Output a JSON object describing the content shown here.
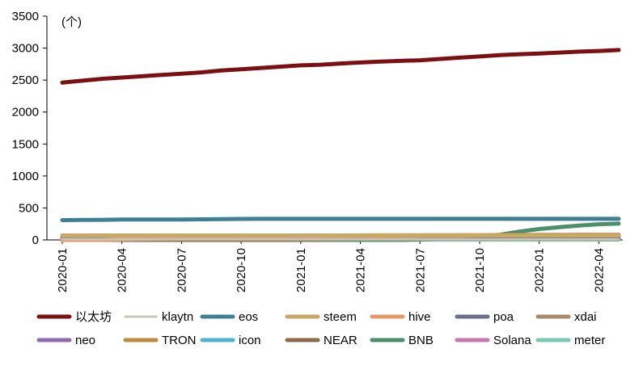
{
  "chart_data": {
    "type": "line",
    "unit_label": "(个)",
    "ylim": [
      0,
      3500
    ],
    "yticks": [
      "0",
      "500",
      "1000",
      "1500",
      "2000",
      "2500",
      "3000",
      "3500"
    ],
    "x": [
      "2020-01",
      "2020-02",
      "2020-03",
      "2020-04",
      "2020-05",
      "2020-06",
      "2020-07",
      "2020-08",
      "2020-09",
      "2020-10",
      "2020-11",
      "2020-12",
      "2021-01",
      "2021-02",
      "2021-03",
      "2021-04",
      "2021-05",
      "2021-06",
      "2021-07",
      "2021-08",
      "2021-09",
      "2021-10",
      "2021-11",
      "2021-12",
      "2022-01",
      "2022-02",
      "2022-03",
      "2022-04",
      "2022-05"
    ],
    "xticks": [
      "2020-01",
      "2020-04",
      "2020-07",
      "2020-10",
      "2021-01",
      "2021-04",
      "2021-07",
      "2021-10",
      "2022-01",
      "2022-04"
    ],
    "grid": false,
    "legend_position": "bottom",
    "series": [
      {
        "name": "以太坊",
        "color": "#7b0f12",
        "width": 5,
        "values": [
          2460,
          2490,
          2520,
          2540,
          2560,
          2580,
          2600,
          2620,
          2650,
          2670,
          2690,
          2710,
          2730,
          2740,
          2760,
          2775,
          2790,
          2800,
          2810,
          2830,
          2850,
          2870,
          2890,
          2905,
          2915,
          2930,
          2945,
          2955,
          2970
        ]
      },
      {
        "name": "klaytn",
        "color": "#c9c5b5",
        "width": 3,
        "values": [
          10,
          10,
          10,
          10,
          10,
          10,
          10,
          10,
          10,
          10,
          10,
          10,
          10,
          10,
          10,
          10,
          10,
          10,
          10,
          10,
          10,
          10,
          10,
          10,
          10,
          10,
          10,
          10,
          10
        ]
      },
      {
        "name": "eos",
        "color": "#3f7f96",
        "width": 5,
        "values": [
          310,
          312,
          315,
          318,
          320,
          320,
          320,
          322,
          325,
          328,
          330,
          330,
          330,
          330,
          330,
          330,
          330,
          330,
          330,
          330,
          330,
          330,
          330,
          330,
          330,
          330,
          330,
          330,
          330
        ]
      },
      {
        "name": "steem",
        "color": "#c8a864",
        "width": 5,
        "values": [
          70,
          70,
          70,
          70,
          70,
          70,
          70,
          70,
          70,
          70,
          70,
          70,
          70,
          70,
          70,
          70,
          70,
          70,
          70,
          70,
          70,
          70,
          70,
          70,
          70,
          70,
          70,
          70,
          70
        ]
      },
      {
        "name": "hive",
        "color": "#e8976a",
        "width": 5,
        "values": [
          0,
          0,
          0,
          10,
          15,
          20,
          25,
          30,
          35,
          40,
          45,
          50,
          50,
          55,
          55,
          60,
          60,
          60,
          65,
          65,
          65,
          70,
          70,
          70,
          70,
          72,
          72,
          75,
          75
        ]
      },
      {
        "name": "poa",
        "color": "#6b6f88",
        "width": 5,
        "values": [
          20,
          20,
          20,
          20,
          20,
          20,
          20,
          20,
          20,
          20,
          20,
          20,
          20,
          20,
          20,
          20,
          20,
          20,
          20,
          20,
          20,
          20,
          20,
          20,
          20,
          20,
          20,
          20,
          20
        ]
      },
      {
        "name": "xdai",
        "color": "#a58a6c",
        "width": 5,
        "values": [
          15,
          15,
          15,
          15,
          15,
          15,
          15,
          15,
          15,
          15,
          15,
          15,
          15,
          15,
          15,
          15,
          15,
          15,
          15,
          15,
          15,
          15,
          15,
          15,
          15,
          15,
          15,
          15,
          15
        ]
      },
      {
        "name": "neo",
        "color": "#8c6aac",
        "width": 5,
        "values": [
          25,
          25,
          25,
          25,
          25,
          25,
          25,
          25,
          25,
          25,
          25,
          25,
          25,
          25,
          25,
          25,
          25,
          25,
          25,
          25,
          25,
          25,
          25,
          25,
          25,
          25,
          25,
          25,
          25
        ]
      },
      {
        "name": "TRON",
        "color": "#c08a3e",
        "width": 5,
        "values": [
          60,
          62,
          64,
          65,
          66,
          67,
          68,
          68,
          69,
          70,
          70,
          70,
          70,
          70,
          70,
          71,
          72,
          72,
          73,
          74,
          75,
          75,
          76,
          77,
          78,
          78,
          79,
          80,
          80
        ]
      },
      {
        "name": "icon",
        "color": "#4fb2cf",
        "width": 5,
        "values": [
          20,
          20,
          20,
          20,
          20,
          20,
          20,
          20,
          20,
          20,
          20,
          20,
          20,
          20,
          20,
          20,
          20,
          20,
          20,
          20,
          20,
          20,
          20,
          20,
          20,
          20,
          20,
          20,
          20
        ]
      },
      {
        "name": "NEAR",
        "color": "#8e6a48",
        "width": 5,
        "values": [
          0,
          0,
          0,
          0,
          0,
          0,
          0,
          0,
          0,
          0,
          0,
          0,
          5,
          10,
          15,
          20,
          25,
          30,
          40,
          50,
          60,
          65,
          70,
          72,
          74,
          76,
          78,
          80,
          80
        ]
      },
      {
        "name": "BNB",
        "color": "#4c8f6c",
        "width": 5,
        "values": [
          0,
          0,
          0,
          0,
          0,
          0,
          0,
          0,
          0,
          0,
          0,
          0,
          0,
          0,
          0,
          0,
          0,
          0,
          5,
          20,
          40,
          60,
          80,
          130,
          170,
          200,
          225,
          245,
          255
        ]
      },
      {
        "name": "Solana",
        "color": "#c877b1",
        "width": 5,
        "values": [
          0,
          0,
          0,
          0,
          0,
          0,
          0,
          0,
          0,
          0,
          0,
          0,
          0,
          0,
          0,
          0,
          5,
          10,
          15,
          20,
          25,
          30,
          35,
          40,
          40,
          45,
          45,
          50,
          50
        ]
      },
      {
        "name": "meter",
        "color": "#7bc8b2",
        "width": 5,
        "values": [
          5,
          5,
          5,
          5,
          5,
          5,
          5,
          5,
          5,
          5,
          5,
          5,
          5,
          5,
          5,
          5,
          5,
          5,
          5,
          5,
          5,
          5,
          5,
          5,
          5,
          5,
          5,
          5,
          5
        ]
      }
    ]
  }
}
